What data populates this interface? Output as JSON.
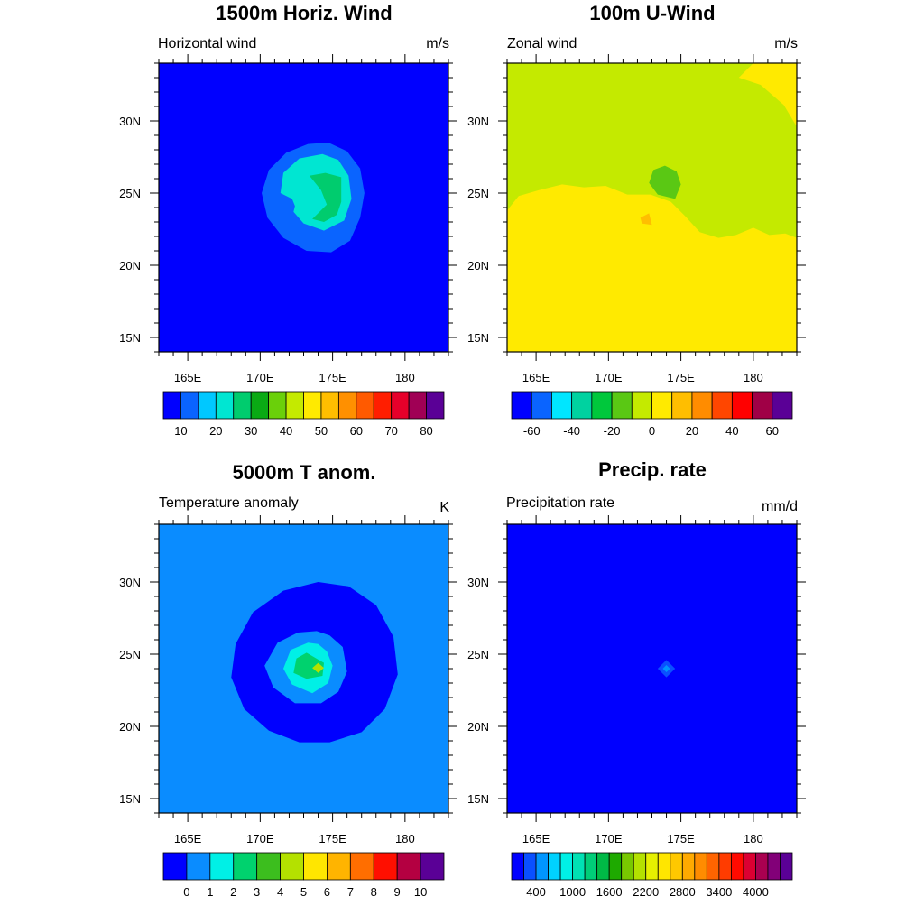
{
  "chart_data": [
    {
      "type": "heatmap",
      "title": "1500m Horiz. Wind",
      "left_label": "Horizontal wind",
      "unit": "m/s",
      "x_ticks": [
        "165E",
        "170E",
        "175E",
        "180"
      ],
      "y_ticks": [
        "15N",
        "20N",
        "25N",
        "30N"
      ],
      "x_range": [
        163,
        183
      ],
      "y_range": [
        14,
        34
      ],
      "background_value": 5,
      "regions": [
        {
          "value": 12,
          "points": [
            [
              174.7,
              28.5
            ],
            [
              173.3,
              28.4
            ],
            [
              171.8,
              27.8
            ],
            [
              170.6,
              26.6
            ],
            [
              170.1,
              25.0
            ],
            [
              170.5,
              23.3
            ],
            [
              171.6,
              21.9
            ],
            [
              173.2,
              21.0
            ],
            [
              174.9,
              20.9
            ],
            [
              176.2,
              21.7
            ],
            [
              176.9,
              23.3
            ],
            [
              177.2,
              25.0
            ],
            [
              176.9,
              26.7
            ],
            [
              176.0,
              27.9
            ]
          ]
        },
        {
          "value": 18,
          "points": [
            [
              174.3,
              27.7
            ],
            [
              172.7,
              27.4
            ],
            [
              171.6,
              26.4
            ],
            [
              171.4,
              25.0
            ],
            [
              172.2,
              24.6
            ],
            [
              172.4,
              24.1
            ],
            [
              172.3,
              23.7
            ],
            [
              173.0,
              22.9
            ],
            [
              174.4,
              22.4
            ],
            [
              175.8,
              23.1
            ],
            [
              176.3,
              24.6
            ],
            [
              176.1,
              26.2
            ],
            [
              175.4,
              27.3
            ]
          ]
        },
        {
          "value": 23,
          "points": [
            [
              173.4,
              26.2
            ],
            [
              174.5,
              26.4
            ],
            [
              175.6,
              26.1
            ],
            [
              175.6,
              24.4
            ],
            [
              175.3,
              23.5
            ],
            [
              174.4,
              23.0
            ],
            [
              173.6,
              23.2
            ],
            [
              174.6,
              24.2
            ],
            [
              174.2,
              25.2
            ]
          ]
        }
      ],
      "colorbar": {
        "colors": [
          "#0000ff",
          "#0a64ff",
          "#00c8ff",
          "#00e6d2",
          "#00cc6e",
          "#0aaa14",
          "#6ad00a",
          "#c4ea00",
          "#ffea00",
          "#ffbe00",
          "#ff9000",
          "#ff5a00",
          "#ff1e00",
          "#e6002a",
          "#a00055",
          "#5a0096"
        ],
        "labels": [
          "10",
          "20",
          "30",
          "40",
          "50",
          "60",
          "70",
          "80"
        ],
        "label_boundaries": [
          1,
          3,
          5,
          7,
          9,
          11,
          13,
          15
        ]
      }
    },
    {
      "type": "heatmap",
      "title": "100m U-Wind",
      "left_label": "Zonal wind",
      "unit": "m/s",
      "x_ticks": [
        "165E",
        "170E",
        "175E",
        "180"
      ],
      "y_ticks": [
        "15N",
        "20N",
        "25N",
        "30N"
      ],
      "x_range": [
        163,
        183
      ],
      "y_range": [
        14,
        34
      ],
      "background_value": -5,
      "regions": [
        {
          "value": -5,
          "points": [
            [
              163,
              34
            ],
            [
              183,
              34
            ],
            [
              183,
              14
            ],
            [
              163,
              14
            ]
          ]
        },
        {
          "value": 5,
          "points": [
            [
              163,
              23.8
            ],
            [
              163.8,
              24.8
            ],
            [
              165.2,
              25.2
            ],
            [
              166.8,
              25.6
            ],
            [
              168.3,
              25.4
            ],
            [
              169.8,
              25.5
            ],
            [
              171.3,
              24.9
            ],
            [
              172.9,
              24.9
            ],
            [
              174.3,
              24.4
            ],
            [
              175.3,
              23.4
            ],
            [
              176.3,
              22.3
            ],
            [
              177.6,
              21.9
            ],
            [
              178.8,
              22.1
            ],
            [
              180.0,
              22.6
            ],
            [
              181.1,
              22.1
            ],
            [
              182.2,
              22.2
            ],
            [
              183,
              21.9
            ],
            [
              183,
              14
            ],
            [
              163,
              14
            ]
          ]
        },
        {
          "value": 5,
          "points": [
            [
              180.0,
              34
            ],
            [
              183,
              34
            ],
            [
              183,
              29.6
            ],
            [
              182.1,
              31.1
            ],
            [
              180.5,
              32.5
            ],
            [
              179.0,
              33.0
            ]
          ]
        },
        {
          "value": -15,
          "points": [
            [
              173.9,
              26.9
            ],
            [
              173.1,
              26.6
            ],
            [
              172.8,
              25.7
            ],
            [
              173.4,
              24.9
            ],
            [
              174.6,
              24.6
            ],
            [
              175.0,
              25.6
            ],
            [
              174.7,
              26.5
            ]
          ]
        },
        {
          "value": 15,
          "points": [
            [
              172.2,
              23.3
            ],
            [
              172.8,
              23.6
            ],
            [
              173.0,
              22.8
            ],
            [
              172.3,
              22.9
            ]
          ]
        }
      ],
      "colorbar": {
        "colors": [
          "#0000ff",
          "#0a64ff",
          "#00e6ff",
          "#00d2a0",
          "#00c83c",
          "#5ac814",
          "#c4ea00",
          "#ffea00",
          "#ffbe00",
          "#ff8c00",
          "#ff4600",
          "#ff0000",
          "#a00046",
          "#5a0096"
        ],
        "labels": [
          "-60",
          "-40",
          "-20",
          "0",
          "20",
          "40",
          "60"
        ],
        "label_boundaries": [
          1,
          3,
          5,
          7,
          9,
          11,
          13
        ]
      }
    },
    {
      "type": "heatmap",
      "title": "5000m T anom.",
      "left_label": "Temperature anomaly",
      "unit": "K",
      "x_ticks": [
        "165E",
        "170E",
        "175E",
        "180"
      ],
      "y_ticks": [
        "15N",
        "20N",
        "25N",
        "30N"
      ],
      "x_range": [
        163,
        183
      ],
      "y_range": [
        14,
        34
      ],
      "background_value": 0.5,
      "regions": [
        {
          "value": -0.5,
          "points": [
            [
              174.0,
              30.0
            ],
            [
              171.6,
              29.4
            ],
            [
              169.5,
              27.9
            ],
            [
              168.3,
              25.7
            ],
            [
              168.0,
              23.4
            ],
            [
              168.9,
              21.2
            ],
            [
              170.6,
              19.7
            ],
            [
              172.7,
              18.9
            ],
            [
              174.8,
              18.9
            ],
            [
              177.0,
              19.6
            ],
            [
              178.6,
              21.2
            ],
            [
              179.5,
              23.6
            ],
            [
              179.2,
              26.2
            ],
            [
              178.0,
              28.4
            ],
            [
              176.1,
              29.7
            ]
          ]
        },
        {
          "value": 0.5,
          "points": [
            [
              172.6,
              26.5
            ],
            [
              171.2,
              25.8
            ],
            [
              170.3,
              24.2
            ],
            [
              170.9,
              22.7
            ],
            [
              172.4,
              21.6
            ],
            [
              174.2,
              21.6
            ],
            [
              175.4,
              22.4
            ],
            [
              176.0,
              23.8
            ],
            [
              175.7,
              25.5
            ],
            [
              174.8,
              26.3
            ],
            [
              173.9,
              26.6
            ]
          ]
        },
        {
          "value": 1.5,
          "points": [
            [
              173.3,
              25.8
            ],
            [
              172.1,
              25.3
            ],
            [
              171.6,
              24.0
            ],
            [
              172.2,
              22.9
            ],
            [
              173.6,
              22.3
            ],
            [
              174.7,
              23.0
            ],
            [
              175.0,
              24.2
            ],
            [
              174.6,
              25.2
            ],
            [
              174.0,
              25.7
            ]
          ]
        },
        {
          "value": 2.5,
          "points": [
            [
              173.2,
              25.1
            ],
            [
              172.5,
              24.7
            ],
            [
              172.3,
              23.7
            ],
            [
              173.2,
              23.3
            ],
            [
              174.3,
              23.5
            ],
            [
              174.4,
              24.4
            ]
          ]
        },
        {
          "value": 4.5,
          "points": [
            [
              174.0,
              24.4
            ],
            [
              174.4,
              24.05
            ],
            [
              174.0,
              23.7
            ],
            [
              173.6,
              24.05
            ]
          ]
        }
      ],
      "colorbar": {
        "colors": [
          "#0000ff",
          "#0a8cff",
          "#00f0e6",
          "#00d26e",
          "#3cbe1e",
          "#b4e100",
          "#ffe600",
          "#ffb400",
          "#ff6e00",
          "#ff0f00",
          "#b40041",
          "#5a0096"
        ],
        "labels": [
          "0",
          "1",
          "2",
          "3",
          "4",
          "5",
          "6",
          "7",
          "8",
          "9",
          "10"
        ],
        "label_boundaries": [
          1,
          2,
          3,
          4,
          5,
          6,
          7,
          8,
          9,
          10,
          11
        ]
      }
    },
    {
      "type": "heatmap",
      "title": "Precip. rate",
      "left_label": "Precipitation rate",
      "unit": "mm/d",
      "x_ticks": [
        "165E",
        "170E",
        "175E",
        "180"
      ],
      "y_ticks": [
        "15N",
        "20N",
        "25N",
        "30N"
      ],
      "x_range": [
        163,
        183
      ],
      "y_range": [
        14,
        34
      ],
      "background_value": 100,
      "regions": [
        {
          "value": 300,
          "points": [
            [
              174.0,
              24.6
            ],
            [
              174.6,
              24.0
            ],
            [
              174.0,
              23.4
            ],
            [
              173.4,
              24.0
            ]
          ]
        },
        {
          "value": 500,
          "points": [
            [
              174.0,
              24.25
            ],
            [
              174.25,
              24.0
            ],
            [
              174.0,
              23.75
            ],
            [
              173.75,
              24.0
            ]
          ]
        }
      ],
      "colorbar": {
        "colors": [
          "#0000ff",
          "#0a50ff",
          "#0096ff",
          "#00d2ff",
          "#00f0e6",
          "#00e1b4",
          "#00cd78",
          "#00b946",
          "#1eaa00",
          "#78c800",
          "#b4e100",
          "#e6f000",
          "#ffe600",
          "#ffc800",
          "#ffaa00",
          "#ff8c00",
          "#ff6400",
          "#ff3c00",
          "#ff0a00",
          "#dc0032",
          "#aa0050",
          "#820078",
          "#5a0096"
        ],
        "labels": [
          "400",
          "1000",
          "1600",
          "2200",
          "2800",
          "3400",
          "4000"
        ],
        "label_boundaries": [
          2,
          5,
          8,
          11,
          14,
          17,
          20
        ]
      }
    }
  ]
}
